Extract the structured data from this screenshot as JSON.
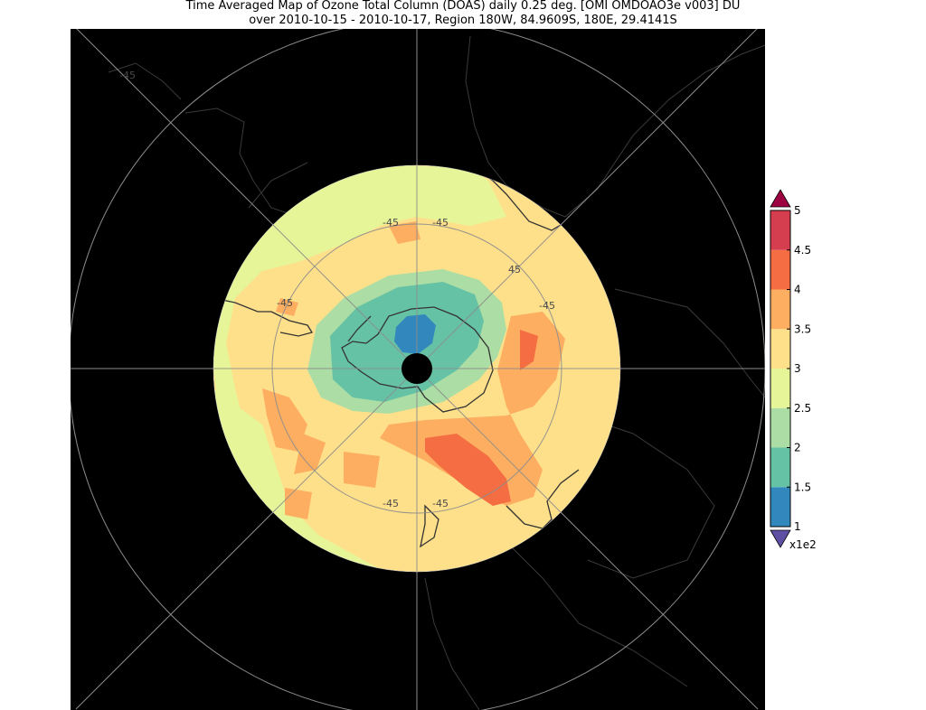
{
  "title": {
    "line1": "Time Averaged Map of Ozone Total Column (DOAS) daily 0.25 deg. [OMI OMDOAO3e v003] DU",
    "line2": "over 2010-10-15 - 2010-10-17, Region 180W, 84.9609S, 180E, 29.4141S"
  },
  "map": {
    "projection": "south-polar-stereographic",
    "background": "#000000",
    "graticule_label": "-45",
    "graticule_label_alt": "45"
  },
  "colorbar": {
    "tick_labels": [
      "1",
      "1.5",
      "2",
      "2.5",
      "3",
      "3.5",
      "4",
      "4.5",
      "5"
    ],
    "multiplier": "x1e2",
    "colors": [
      "#3288bd",
      "#66c2a5",
      "#abdda4",
      "#e6f598",
      "#fee08b",
      "#fdae61",
      "#f46d43",
      "#d53e4f"
    ],
    "over_color": "#9e0142",
    "under_color": "#5e4fa2"
  }
}
